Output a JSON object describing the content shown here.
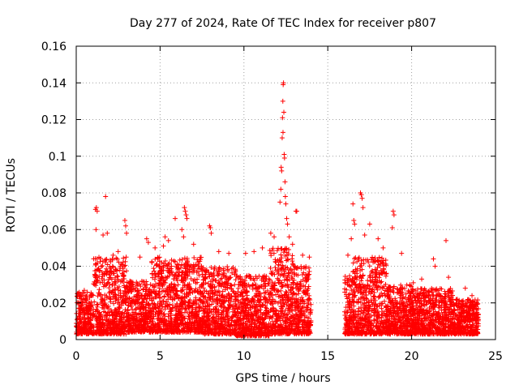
{
  "chart_data": {
    "type": "scatter",
    "title": "Day 277 of 2024, Rate Of TEC Index for receiver p807",
    "xlabel": "GPS time / hours",
    "ylabel": "ROTI / TECUs",
    "xlim": [
      0,
      25
    ],
    "ylim": [
      0,
      0.16
    ],
    "x_ticks": [
      0,
      5,
      10,
      15,
      20,
      25
    ],
    "x_tick_labels": [
      "0",
      "5",
      "10",
      "15",
      "20",
      "25"
    ],
    "y_ticks": [
      0,
      0.02,
      0.04,
      0.06,
      0.08,
      0.1,
      0.12,
      0.14,
      0.16
    ],
    "y_tick_labels": [
      "0",
      "0.02",
      "0.04",
      "0.06",
      "0.08",
      "0.1",
      "0.12",
      "0.14",
      "0.16"
    ],
    "grid": true,
    "marker": "plus",
    "color": "#ff0000",
    "series": [
      {
        "name": "ROTI",
        "points": [
          [
            1.15,
            0.071
          ],
          [
            1.2,
            0.072
          ],
          [
            1.25,
            0.07
          ],
          [
            1.18,
            0.06
          ],
          [
            1.75,
            0.078
          ],
          [
            1.6,
            0.057
          ],
          [
            1.85,
            0.058
          ],
          [
            2.2,
            0.046
          ],
          [
            2.9,
            0.065
          ],
          [
            2.95,
            0.062
          ],
          [
            3.0,
            0.058
          ],
          [
            2.5,
            0.048
          ],
          [
            3.8,
            0.045
          ],
          [
            4.2,
            0.055
          ],
          [
            4.3,
            0.053
          ],
          [
            4.7,
            0.05
          ],
          [
            5.3,
            0.056
          ],
          [
            5.5,
            0.054
          ],
          [
            5.2,
            0.051
          ],
          [
            5.9,
            0.066
          ],
          [
            6.45,
            0.072
          ],
          [
            6.5,
            0.07
          ],
          [
            6.55,
            0.068
          ],
          [
            6.6,
            0.066
          ],
          [
            6.3,
            0.06
          ],
          [
            6.4,
            0.056
          ],
          [
            7.0,
            0.052
          ],
          [
            7.95,
            0.062
          ],
          [
            8.0,
            0.061
          ],
          [
            8.05,
            0.058
          ],
          [
            8.5,
            0.048
          ],
          [
            9.1,
            0.047
          ],
          [
            10.1,
            0.047
          ],
          [
            10.6,
            0.048
          ],
          [
            11.1,
            0.05
          ],
          [
            11.6,
            0.058
          ],
          [
            11.8,
            0.056
          ],
          [
            12.15,
            0.075
          ],
          [
            12.2,
            0.082
          ],
          [
            12.22,
            0.094
          ],
          [
            12.25,
            0.092
          ],
          [
            12.28,
            0.11
          ],
          [
            12.3,
            0.121
          ],
          [
            12.32,
            0.13
          ],
          [
            12.34,
            0.139
          ],
          [
            12.36,
            0.14
          ],
          [
            12.38,
            0.124
          ],
          [
            12.33,
            0.113
          ],
          [
            12.4,
            0.101
          ],
          [
            12.42,
            0.099
          ],
          [
            12.45,
            0.086
          ],
          [
            12.47,
            0.078
          ],
          [
            12.5,
            0.074
          ],
          [
            12.55,
            0.066
          ],
          [
            12.6,
            0.063
          ],
          [
            12.7,
            0.056
          ],
          [
            12.9,
            0.052
          ],
          [
            13.1,
            0.07
          ],
          [
            13.15,
            0.07
          ],
          [
            13.5,
            0.046
          ],
          [
            13.9,
            0.045
          ],
          [
            16.2,
            0.046
          ],
          [
            16.4,
            0.055
          ],
          [
            16.5,
            0.074
          ],
          [
            16.55,
            0.065
          ],
          [
            16.6,
            0.063
          ],
          [
            16.95,
            0.08
          ],
          [
            17.0,
            0.079
          ],
          [
            17.05,
            0.077
          ],
          [
            17.1,
            0.072
          ],
          [
            17.2,
            0.057
          ],
          [
            17.5,
            0.063
          ],
          [
            18.0,
            0.055
          ],
          [
            18.3,
            0.05
          ],
          [
            18.9,
            0.07
          ],
          [
            18.95,
            0.068
          ],
          [
            18.85,
            0.061
          ],
          [
            19.4,
            0.047
          ],
          [
            20.1,
            0.031
          ],
          [
            20.6,
            0.033
          ],
          [
            21.3,
            0.044
          ],
          [
            21.4,
            0.04
          ],
          [
            22.05,
            0.054
          ],
          [
            22.2,
            0.034
          ],
          [
            23.2,
            0.028
          ],
          [
            23.6,
            0.024
          ]
        ]
      }
    ],
    "background_bands": [
      {
        "x_range": [
          0,
          1
        ],
        "y_range": [
          0.003,
          0.027
        ]
      },
      {
        "x_range": [
          1,
          3
        ],
        "y_range": [
          0.003,
          0.045
        ]
      },
      {
        "x_range": [
          3,
          4.5
        ],
        "y_range": [
          0.004,
          0.032
        ]
      },
      {
        "x_range": [
          4.5,
          7.5
        ],
        "y_range": [
          0.004,
          0.045
        ]
      },
      {
        "x_range": [
          7.5,
          9.5
        ],
        "y_range": [
          0.003,
          0.04
        ]
      },
      {
        "x_range": [
          9.5,
          11.5
        ],
        "y_range": [
          0.002,
          0.035
        ]
      },
      {
        "x_range": [
          11.5,
          13.0
        ],
        "y_range": [
          0.003,
          0.05
        ]
      },
      {
        "x_range": [
          13.0,
          14.0
        ],
        "y_range": [
          0.003,
          0.04
        ]
      },
      {
        "x_range": [
          16.0,
          16.5
        ],
        "y_range": [
          0.003,
          0.035
        ]
      },
      {
        "x_range": [
          16.5,
          18.5
        ],
        "y_range": [
          0.003,
          0.045
        ]
      },
      {
        "x_range": [
          18.5,
          20.0
        ],
        "y_range": [
          0.003,
          0.03
        ]
      },
      {
        "x_range": [
          20.0,
          22.5
        ],
        "y_range": [
          0.003,
          0.028
        ]
      },
      {
        "x_range": [
          22.5,
          24.0
        ],
        "y_range": [
          0.003,
          0.022
        ]
      }
    ]
  }
}
